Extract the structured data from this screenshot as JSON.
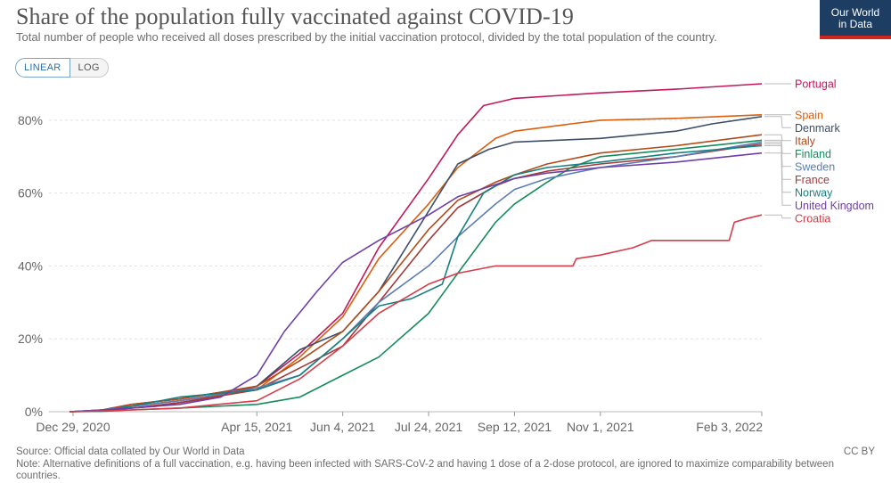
{
  "header": {
    "title": "Share of the population fully vaccinated against COVID-19",
    "subtitle": "Total number of people who received all doses prescribed by the initial vaccination protocol, divided by the total population of the country.",
    "logo_line1": "Our World",
    "logo_line2": "in Data",
    "logo_color": "#1d3d63",
    "logo_accent": "#ce261e"
  },
  "controls": {
    "linear_label": "LINEAR",
    "log_label": "LOG"
  },
  "footer": {
    "source": "Source: Official data collated by Our World in Data",
    "note_line1": "Note: Alternative definitions of a full vaccination, e.g. having been infected with SARS-CoV-2 and having 1 dose of a 2-dose protocol, are ignored to maximize comparability between",
    "note_line2": "countries.",
    "license": "CC BY"
  },
  "chart_data": {
    "type": "line",
    "x_range": [
      "2020-12-15",
      "2022-02-03"
    ],
    "ylim": [
      0,
      90
    ],
    "y_ticks": [
      0,
      20,
      40,
      60,
      80
    ],
    "y_tick_labels": [
      "0%",
      "20%",
      "40%",
      "60%",
      "80%"
    ],
    "x_ticks": [
      "2020-12-29",
      "2021-04-15",
      "2021-06-04",
      "2021-07-24",
      "2021-09-12",
      "2021-11-01",
      "2022-02-03"
    ],
    "x_tick_labels": [
      "Dec 29, 2020",
      "Apr 15, 2021",
      "Jun 4, 2021",
      "Jul 24, 2021",
      "Sep 12, 2021",
      "Nov 1, 2021",
      "Feb 3, 2022"
    ],
    "grid": true,
    "legend": "right, labels at line ends",
    "series": [
      {
        "name": "Portugal",
        "color": "#c2185b",
        "points": [
          [
            "2020-12-27",
            0
          ],
          [
            "2021-01-15",
            0.4
          ],
          [
            "2021-02-15",
            1.5
          ],
          [
            "2021-03-15",
            3.5
          ],
          [
            "2021-04-15",
            7
          ],
          [
            "2021-05-10",
            16
          ],
          [
            "2021-06-04",
            27
          ],
          [
            "2021-06-25",
            45
          ],
          [
            "2021-07-24",
            64
          ],
          [
            "2021-08-10",
            76
          ],
          [
            "2021-08-25",
            84
          ],
          [
            "2021-09-12",
            86
          ],
          [
            "2021-11-01",
            87.5
          ],
          [
            "2021-12-15",
            88.5
          ],
          [
            "2022-02-03",
            90
          ]
        ]
      },
      {
        "name": "Spain",
        "color": "#d95f0e",
        "points": [
          [
            "2020-12-27",
            0
          ],
          [
            "2021-01-15",
            0.3
          ],
          [
            "2021-02-01",
            1.5
          ],
          [
            "2021-03-01",
            3
          ],
          [
            "2021-04-15",
            6
          ],
          [
            "2021-05-10",
            15
          ],
          [
            "2021-06-04",
            26
          ],
          [
            "2021-06-25",
            42
          ],
          [
            "2021-07-24",
            57
          ],
          [
            "2021-08-10",
            67
          ],
          [
            "2021-09-01",
            75
          ],
          [
            "2021-09-12",
            77
          ],
          [
            "2021-10-15",
            79
          ],
          [
            "2021-11-01",
            80
          ],
          [
            "2021-12-15",
            80.5
          ],
          [
            "2022-02-03",
            81.5
          ]
        ]
      },
      {
        "name": "Denmark",
        "color": "#3d4e68",
        "points": [
          [
            "2020-12-27",
            0
          ],
          [
            "2021-01-15",
            0.5
          ],
          [
            "2021-02-01",
            2
          ],
          [
            "2021-03-01",
            3.5
          ],
          [
            "2021-04-15",
            7
          ],
          [
            "2021-05-10",
            17
          ],
          [
            "2021-06-04",
            22
          ],
          [
            "2021-06-25",
            33
          ],
          [
            "2021-07-24",
            55
          ],
          [
            "2021-08-10",
            68
          ],
          [
            "2021-08-28",
            72
          ],
          [
            "2021-09-12",
            74
          ],
          [
            "2021-11-01",
            75
          ],
          [
            "2021-12-15",
            77
          ],
          [
            "2022-01-05",
            79
          ],
          [
            "2022-02-03",
            81
          ]
        ]
      },
      {
        "name": "Italy",
        "color": "#b34a17",
        "points": [
          [
            "2020-12-27",
            0
          ],
          [
            "2021-01-15",
            0.5
          ],
          [
            "2021-02-01",
            2
          ],
          [
            "2021-03-01",
            3.5
          ],
          [
            "2021-04-15",
            7
          ],
          [
            "2021-05-10",
            14
          ],
          [
            "2021-06-04",
            22
          ],
          [
            "2021-06-25",
            33
          ],
          [
            "2021-07-24",
            50
          ],
          [
            "2021-08-10",
            58
          ],
          [
            "2021-09-01",
            63
          ],
          [
            "2021-09-12",
            65
          ],
          [
            "2021-10-01",
            68
          ],
          [
            "2021-11-01",
            71
          ],
          [
            "2021-12-15",
            73
          ],
          [
            "2022-02-03",
            76
          ]
        ]
      },
      {
        "name": "France",
        "color": "#a23a3a",
        "points": [
          [
            "2020-12-27",
            0
          ],
          [
            "2021-01-15",
            0.2
          ],
          [
            "2021-02-01",
            1
          ],
          [
            "2021-03-01",
            2.5
          ],
          [
            "2021-04-15",
            6
          ],
          [
            "2021-05-10",
            12
          ],
          [
            "2021-06-04",
            18
          ],
          [
            "2021-06-25",
            30
          ],
          [
            "2021-07-24",
            47
          ],
          [
            "2021-08-10",
            56
          ],
          [
            "2021-09-01",
            62
          ],
          [
            "2021-09-12",
            64
          ],
          [
            "2021-10-01",
            66
          ],
          [
            "2021-11-01",
            68
          ],
          [
            "2021-12-15",
            70
          ],
          [
            "2022-02-03",
            73.5
          ]
        ]
      },
      {
        "name": "Finland",
        "color": "#168c5c",
        "points": [
          [
            "2020-12-27",
            0
          ],
          [
            "2021-01-15",
            0.1
          ],
          [
            "2021-02-01",
            0.5
          ],
          [
            "2021-03-01",
            1
          ],
          [
            "2021-04-15",
            2
          ],
          [
            "2021-05-10",
            4
          ],
          [
            "2021-06-04",
            10
          ],
          [
            "2021-06-25",
            15
          ],
          [
            "2021-07-24",
            27
          ],
          [
            "2021-08-10",
            38
          ],
          [
            "2021-09-01",
            52
          ],
          [
            "2021-09-12",
            57
          ],
          [
            "2021-10-01",
            63
          ],
          [
            "2021-10-15",
            67
          ],
          [
            "2021-11-01",
            70
          ],
          [
            "2021-12-15",
            72
          ],
          [
            "2022-02-03",
            74.5
          ]
        ]
      },
      {
        "name": "Sweden",
        "color": "#5c7eb5",
        "points": [
          [
            "2020-12-27",
            0
          ],
          [
            "2021-01-15",
            0.5
          ],
          [
            "2021-02-01",
            1.5
          ],
          [
            "2021-03-01",
            3
          ],
          [
            "2021-04-15",
            6.5
          ],
          [
            "2021-05-10",
            10
          ],
          [
            "2021-06-04",
            20
          ],
          [
            "2021-06-25",
            30
          ],
          [
            "2021-07-24",
            40
          ],
          [
            "2021-08-10",
            48
          ],
          [
            "2021-09-01",
            57
          ],
          [
            "2021-09-12",
            61
          ],
          [
            "2021-10-01",
            64
          ],
          [
            "2021-11-01",
            67
          ],
          [
            "2021-12-15",
            70
          ],
          [
            "2022-02-03",
            74
          ]
        ]
      },
      {
        "name": "Norway",
        "color": "#178080",
        "points": [
          [
            "2020-12-27",
            0
          ],
          [
            "2021-01-15",
            0.3
          ],
          [
            "2021-02-01",
            1.5
          ],
          [
            "2021-03-01",
            4
          ],
          [
            "2021-04-15",
            6
          ],
          [
            "2021-05-10",
            10
          ],
          [
            "2021-06-04",
            20
          ],
          [
            "2021-06-25",
            29
          ],
          [
            "2021-07-14",
            31
          ],
          [
            "2021-08-01",
            35
          ],
          [
            "2021-08-10",
            48
          ],
          [
            "2021-08-25",
            60
          ],
          [
            "2021-09-12",
            65
          ],
          [
            "2021-10-01",
            67
          ],
          [
            "2021-11-01",
            68.5
          ],
          [
            "2021-12-15",
            71
          ],
          [
            "2022-02-03",
            73
          ]
        ]
      },
      {
        "name": "United Kingdom",
        "color": "#6f3fa8",
        "points": [
          [
            "2020-12-27",
            0
          ],
          [
            "2021-01-15",
            0.5
          ],
          [
            "2021-02-01",
            1
          ],
          [
            "2021-03-01",
            2
          ],
          [
            "2021-03-25",
            4
          ],
          [
            "2021-04-15",
            10
          ],
          [
            "2021-05-01",
            22
          ],
          [
            "2021-05-20",
            33
          ],
          [
            "2021-06-04",
            41
          ],
          [
            "2021-06-25",
            47
          ],
          [
            "2021-07-24",
            54
          ],
          [
            "2021-08-10",
            59
          ],
          [
            "2021-09-12",
            64
          ],
          [
            "2021-10-01",
            65.5
          ],
          [
            "2021-11-01",
            67
          ],
          [
            "2021-12-15",
            68.5
          ],
          [
            "2022-02-03",
            71
          ]
        ]
      },
      {
        "name": "Croatia",
        "color": "#d63c4a",
        "points": [
          [
            "2020-12-27",
            0
          ],
          [
            "2021-01-15",
            0.2
          ],
          [
            "2021-02-01",
            0.5
          ],
          [
            "2021-03-01",
            1
          ],
          [
            "2021-04-15",
            3
          ],
          [
            "2021-05-10",
            9
          ],
          [
            "2021-06-04",
            18
          ],
          [
            "2021-06-25",
            27
          ],
          [
            "2021-07-24",
            35
          ],
          [
            "2021-08-10",
            38
          ],
          [
            "2021-09-01",
            40
          ],
          [
            "2021-10-01",
            40
          ],
          [
            "2021-10-16",
            40
          ],
          [
            "2021-10-18",
            42
          ],
          [
            "2021-11-01",
            43
          ],
          [
            "2021-11-20",
            45
          ],
          [
            "2021-12-01",
            47
          ],
          [
            "2021-12-15",
            47
          ],
          [
            "2022-01-15",
            47
          ],
          [
            "2022-01-18",
            52
          ],
          [
            "2022-01-25",
            53
          ],
          [
            "2022-02-03",
            54
          ]
        ]
      }
    ]
  }
}
